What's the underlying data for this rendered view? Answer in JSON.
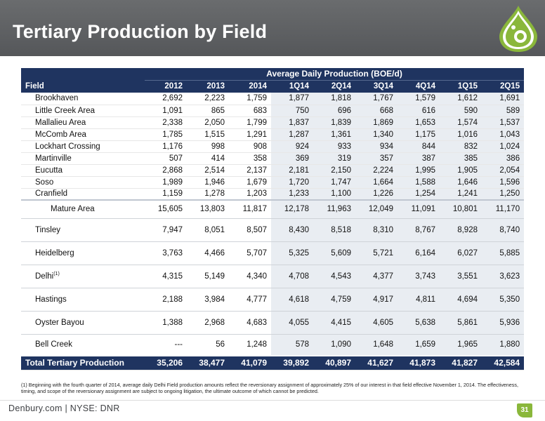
{
  "slide": {
    "title": "Tertiary Production by Field",
    "footer_text": "Denbury.com | NYSE: DNR",
    "page_number": "31",
    "footnote": "(1) Beginning with the fourth quarter of 2014, average daily Delhi Field production amounts reflect the reversionary assignment of approximately 25% of our interest in that field effective November 1, 2014. The effectiveness, timing, and scope of the reversionary assignment are subject to ongoing litigation, the ultimate outcome of which cannot be predicted."
  },
  "table": {
    "group_header": "Average Daily Production (BOE/d)",
    "field_header": "Field",
    "columns": [
      "2012",
      "2013",
      "2014",
      "1Q14",
      "2Q14",
      "3Q14",
      "4Q14",
      "1Q15",
      "2Q15"
    ],
    "rows": [
      {
        "field": "Brookhaven",
        "values": [
          "2,692",
          "2,223",
          "1,759",
          "1,877",
          "1,818",
          "1,767",
          "1,579",
          "1,612",
          "1,691"
        ]
      },
      {
        "field": "Little Creek Area",
        "values": [
          "1,091",
          "865",
          "683",
          "750",
          "696",
          "668",
          "616",
          "590",
          "589"
        ]
      },
      {
        "field": "Mallalieu Area",
        "values": [
          "2,338",
          "2,050",
          "1,799",
          "1,837",
          "1,839",
          "1,869",
          "1,653",
          "1,574",
          "1,537"
        ]
      },
      {
        "field": "McComb Area",
        "values": [
          "1,785",
          "1,515",
          "1,291",
          "1,287",
          "1,361",
          "1,340",
          "1,175",
          "1,016",
          "1,043"
        ]
      },
      {
        "field": "Lockhart Crossing",
        "values": [
          "1,176",
          "998",
          "908",
          "924",
          "933",
          "934",
          "844",
          "832",
          "1,024"
        ]
      },
      {
        "field": "Martinville",
        "values": [
          "507",
          "414",
          "358",
          "369",
          "319",
          "357",
          "387",
          "385",
          "386"
        ]
      },
      {
        "field": "Eucutta",
        "values": [
          "2,868",
          "2,514",
          "2,137",
          "2,181",
          "2,150",
          "2,224",
          "1,995",
          "1,905",
          "2,054"
        ]
      },
      {
        "field": "Soso",
        "values": [
          "1,989",
          "1,946",
          "1,679",
          "1,720",
          "1,747",
          "1,664",
          "1,588",
          "1,646",
          "1,596"
        ]
      },
      {
        "field": "Cranfield",
        "values": [
          "1,159",
          "1,278",
          "1,203",
          "1,233",
          "1,100",
          "1,226",
          "1,254",
          "1,241",
          "1,250"
        ]
      }
    ],
    "mature": {
      "field": "Mature Area",
      "values": [
        "15,605",
        "13,803",
        "11,817",
        "12,178",
        "11,963",
        "12,049",
        "11,091",
        "10,801",
        "11,170"
      ]
    },
    "other_rows": [
      {
        "field": "Tinsley",
        "sup": "",
        "values": [
          "7,947",
          "8,051",
          "8,507",
          "8,430",
          "8,518",
          "8,310",
          "8,767",
          "8,928",
          "8,740"
        ]
      },
      {
        "field": "Heidelberg",
        "sup": "",
        "values": [
          "3,763",
          "4,466",
          "5,707",
          "5,325",
          "5,609",
          "5,721",
          "6,164",
          "6,027",
          "5,885"
        ]
      },
      {
        "field": "Delhi",
        "sup": "(1)",
        "values": [
          "4,315",
          "5,149",
          "4,340",
          "4,708",
          "4,543",
          "4,377",
          "3,743",
          "3,551",
          "3,623"
        ]
      },
      {
        "field": "Hastings",
        "sup": "",
        "values": [
          "2,188",
          "3,984",
          "4,777",
          "4,618",
          "4,759",
          "4,917",
          "4,811",
          "4,694",
          "5,350"
        ]
      },
      {
        "field": "Oyster Bayou",
        "sup": "",
        "values": [
          "1,388",
          "2,968",
          "4,683",
          "4,055",
          "4,415",
          "4,605",
          "5,638",
          "5,861",
          "5,936"
        ]
      },
      {
        "field": "Bell Creek",
        "sup": "",
        "values": [
          "---",
          "56",
          "1,248",
          "578",
          "1,090",
          "1,648",
          "1,659",
          "1,965",
          "1,880"
        ]
      }
    ],
    "total": {
      "field": "Total Tertiary Production",
      "values": [
        "35,206",
        "38,477",
        "41,079",
        "39,892",
        "40,897",
        "41,627",
        "41,873",
        "41,827",
        "42,584"
      ]
    }
  },
  "colors": {
    "header_bg": "#5f6164",
    "table_header_bg": "#1f3460",
    "shade": "#e9edf2",
    "logo_green": "#8ab73b"
  },
  "icons": {
    "logo": "denbury-drop-logo-icon"
  }
}
